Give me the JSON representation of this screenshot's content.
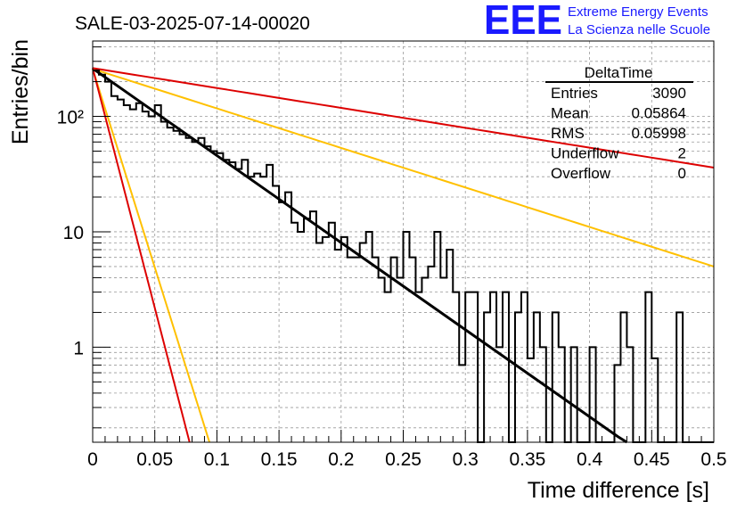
{
  "header": {
    "title": "SALE-03-2025-07-14-00020",
    "logo_text": "EEE",
    "logo_line1": "Extreme Energy Events",
    "logo_line2": "La Scienza nelle Scuole"
  },
  "stats_box": {
    "title": "DeltaTime",
    "rows": [
      {
        "label": "Entries",
        "value": "3090"
      },
      {
        "label": "Mean",
        "value": "0.05864"
      },
      {
        "label": "RMS",
        "value": "0.05998"
      },
      {
        "label": "Underflow",
        "value": "2"
      },
      {
        "label": "Overflow",
        "value": "0"
      }
    ]
  },
  "colors": {
    "histogram": "#000000",
    "fit": "#000000",
    "band_outer": "#dd0000",
    "band_inner": "#ffc000",
    "logo": "#1a1aff"
  },
  "chart_data": {
    "type": "line",
    "xlabel": "Time difference [s]",
    "ylabel": "Entries/bin",
    "x_range": [
      0,
      0.5
    ],
    "y_range": [
      0.15,
      450
    ],
    "y_scale": "log",
    "grid": true,
    "x_ticks": [
      "0",
      "0.05",
      "0.1",
      "0.15",
      "0.2",
      "0.25",
      "0.3",
      "0.35",
      "0.4",
      "0.45",
      "0.5"
    ],
    "y_ticks": [
      {
        "value": 1,
        "label": "1"
      },
      {
        "value": 10,
        "label": "10"
      },
      {
        "value": 100,
        "label": "10²"
      }
    ],
    "histogram": {
      "bin_width": 0.005,
      "counts": [
        250,
        230,
        200,
        150,
        140,
        125,
        115,
        130,
        110,
        100,
        125,
        90,
        80,
        75,
        70,
        65,
        60,
        65,
        55,
        50,
        48,
        42,
        40,
        35,
        42,
        30,
        32,
        30,
        38,
        25,
        18,
        22,
        12,
        10,
        13,
        15,
        8,
        9,
        12,
        7,
        9,
        6,
        6,
        8,
        10,
        6,
        4,
        3,
        6,
        4,
        10,
        6,
        3,
        4,
        5,
        10,
        4,
        7,
        3,
        0.7,
        3,
        3,
        0.1,
        2,
        3,
        1,
        3,
        0.1,
        2,
        3,
        0.8,
        2,
        1,
        0.1,
        2,
        1,
        0.1,
        1,
        0.1,
        0.1,
        1,
        0.1,
        0.1,
        0.1,
        0.7,
        2,
        1,
        0.1,
        0.1,
        3,
        0.8,
        0.1,
        0.1,
        0.1,
        2,
        0.1,
        0.1,
        0.1,
        0.1,
        0.1
      ]
    },
    "series": [
      {
        "style": "fit",
        "x": [
          0,
          0.43
        ],
        "y": [
          260,
          0.148
        ]
      },
      {
        "style": "band_inner",
        "x": [
          0,
          0.5
        ],
        "y": [
          258,
          5.0
        ]
      },
      {
        "style": "band_outer",
        "x": [
          0,
          0.5
        ],
        "y": [
          262,
          36
        ]
      },
      {
        "style": "band_inner",
        "x": [
          0,
          0.094
        ],
        "y": [
          258,
          0.15
        ]
      },
      {
        "style": "band_outer",
        "x": [
          0,
          0.078
        ],
        "y": [
          262,
          0.15
        ]
      }
    ]
  }
}
